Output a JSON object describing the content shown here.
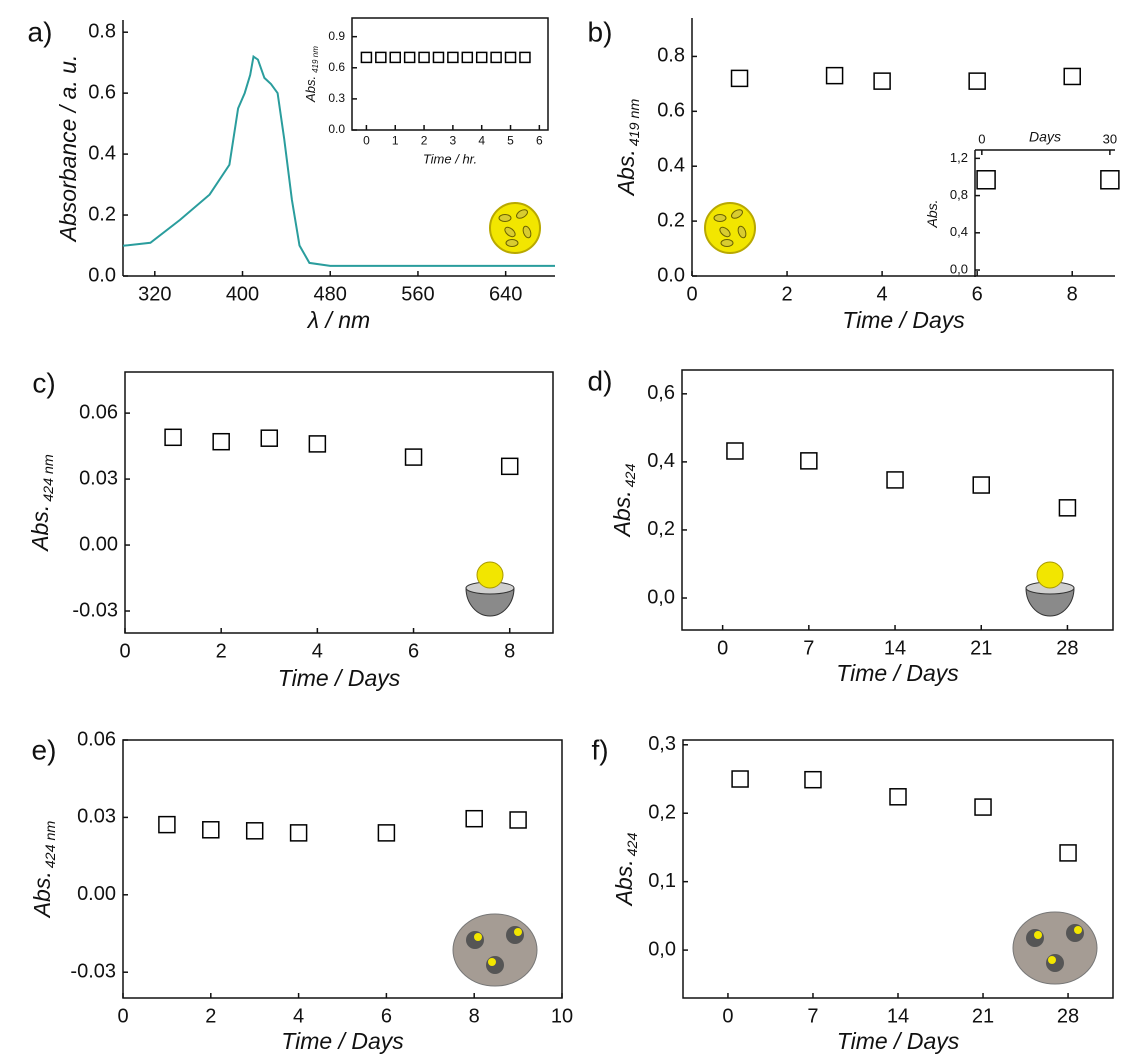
{
  "chart_data": [
    {
      "type": "line",
      "panel_label": "a)",
      "x_label": "λ / nm",
      "y_label": "Absorbance / a. u.",
      "frame": "axes",
      "color": "#2a9d9d",
      "x": [
        291,
        316,
        343,
        370,
        388,
        396,
        402,
        407,
        410,
        414,
        420,
        426,
        432,
        438,
        445,
        452,
        461,
        480,
        560,
        640,
        685
      ],
      "values": [
        0.099,
        0.109,
        0.184,
        0.267,
        0.365,
        0.55,
        0.6,
        0.66,
        0.72,
        0.71,
        0.65,
        0.63,
        0.6,
        0.45,
        0.25,
        0.1,
        0.043,
        0.033,
        0.033,
        0.033,
        0.033
      ],
      "xlim": [
        291,
        685
      ],
      "ylim": [
        0,
        0.84
      ],
      "xticks": [
        320,
        400,
        480,
        560,
        640
      ],
      "yticks": [
        {
          "value": 0,
          "label": "0.0"
        },
        0.2,
        0.4,
        0.6,
        0.8
      ],
      "inset": {
        "type": "scatter",
        "x_label": "Time / hr.",
        "y_label": "Abs.",
        "y_label_sub": "419 nm",
        "frame": "box",
        "color": "#000000",
        "x": [
          0,
          0.5,
          1,
          1.5,
          2,
          2.5,
          3,
          3.5,
          4,
          4.5,
          5,
          5.5
        ],
        "values": [
          0.7,
          0.7,
          0.7,
          0.7,
          0.7,
          0.7,
          0.7,
          0.7,
          0.7,
          0.7,
          0.7,
          0.7
        ],
        "xlim": [
          -0.5,
          6.3
        ],
        "ylim": [
          0,
          1.08
        ],
        "xticks": [
          0,
          1,
          2,
          3,
          4,
          5,
          6
        ],
        "yticks": [
          {
            "value": 0,
            "label": "0.0"
          },
          0.3,
          0.6,
          0.9
        ]
      }
    },
    {
      "type": "scatter",
      "panel_label": "b)",
      "x_label": "Time / Days",
      "y_label": "Abs.",
      "y_label_sub": "419 nm",
      "frame": "axes",
      "color": "#000000",
      "x": [
        1,
        3,
        4,
        6,
        8
      ],
      "values": [
        0.72,
        0.73,
        0.71,
        0.71,
        0.727
      ],
      "xlim": [
        0,
        8.9
      ],
      "ylim": [
        0,
        0.94
      ],
      "xticks": [
        0,
        2,
        4,
        6,
        8
      ],
      "yticks": [
        {
          "value": 0,
          "label": "0.0"
        },
        0.2,
        0.4,
        0.6,
        0.8
      ],
      "inset": {
        "type": "scatter",
        "x_label": "Days",
        "y_label": "Abs.",
        "frame": "left-top",
        "color": "#000000",
        "x": [
          1,
          30
        ],
        "values": [
          0.97,
          0.97
        ],
        "xlim": [
          -1.6,
          31.2
        ],
        "ylim": [
          -0.075,
          1.29
        ],
        "xticks": [
          0,
          30
        ],
        "yticks": [
          {
            "value": 0,
            "label": "0,0"
          },
          {
            "value": 0.4,
            "label": "0,4"
          },
          {
            "value": 0.8,
            "label": "0,8"
          },
          {
            "value": 1.2,
            "label": "1,2"
          }
        ]
      }
    },
    {
      "type": "scatter",
      "panel_label": "c)",
      "x_label": "Time / Days",
      "y_label": "Abs.",
      "y_label_sub": "424 nm",
      "frame": "box",
      "color": "#000000",
      "x": [
        1,
        2,
        3,
        4,
        6,
        8
      ],
      "values": [
        0.049,
        0.047,
        0.0486,
        0.046,
        0.04,
        0.0358
      ],
      "xlim": [
        0,
        8.9
      ],
      "ylim": [
        -0.04,
        0.0787
      ],
      "xticks": [
        0,
        2,
        4,
        6,
        8
      ],
      "yticks": [
        -0.03,
        {
          "value": 0,
          "label": "0.00"
        },
        0.03,
        0.06
      ]
    },
    {
      "type": "scatter",
      "panel_label": "d)",
      "x_label": "Time / Days",
      "y_label": "Abs.",
      "y_label_sub": "424",
      "frame": "box",
      "color": "#000000",
      "x": [
        1,
        7,
        14,
        21,
        28
      ],
      "values": [
        0.432,
        0.403,
        0.347,
        0.332,
        0.265
      ],
      "xlim": [
        -3.3,
        31.7
      ],
      "ylim": [
        -0.094,
        0.67
      ],
      "xticks": [
        0,
        7,
        14,
        21,
        28
      ],
      "yticks": [
        {
          "value": 0,
          "label": "0,0"
        },
        {
          "value": 0.2,
          "label": "0,2"
        },
        {
          "value": 0.4,
          "label": "0,4"
        },
        {
          "value": 0.6,
          "label": "0,6"
        }
      ]
    },
    {
      "type": "scatter",
      "panel_label": "e)",
      "x_label": "Time / Days",
      "y_label": "Abs.",
      "y_label_sub": "424 nm",
      "frame": "box",
      "color": "#000000",
      "x": [
        1,
        2,
        3,
        4,
        6,
        8,
        9
      ],
      "values": [
        0.0272,
        0.0252,
        0.0248,
        0.024,
        0.024,
        0.0295,
        0.029
      ],
      "xlim": [
        0,
        10
      ],
      "ylim": [
        -0.04,
        0.06
      ],
      "xticks": [
        0,
        2,
        4,
        6,
        8,
        10
      ],
      "yticks": [
        -0.03,
        {
          "value": 0,
          "label": "0.00"
        },
        0.03,
        0.06
      ]
    },
    {
      "type": "scatter",
      "panel_label": "f)",
      "x_label": "Time / Days",
      "y_label": "Abs.",
      "y_label_sub": "424",
      "frame": "box",
      "color": "#000000",
      "x": [
        1,
        7,
        14,
        21,
        28
      ],
      "values": [
        0.25,
        0.249,
        0.224,
        0.209,
        0.142
      ],
      "xlim": [
        -3.7,
        31.7
      ],
      "ylim": [
        -0.07,
        0.307
      ],
      "xticks": [
        0,
        7,
        14,
        21,
        28
      ],
      "yticks": [
        {
          "value": 0,
          "label": "0,0"
        },
        {
          "value": 0.1,
          "label": "0,1"
        },
        {
          "value": 0.2,
          "label": "0,2"
        },
        {
          "value": 0.3,
          "label": "0,3"
        }
      ]
    }
  ]
}
